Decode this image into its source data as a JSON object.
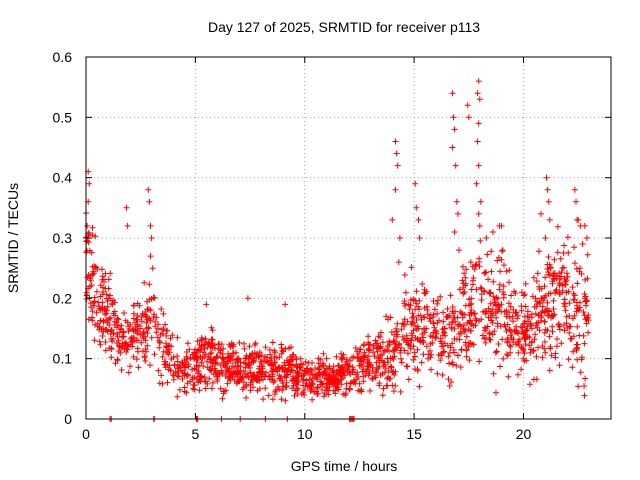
{
  "chart_data": {
    "type": "scatter",
    "title": "Day 127 of 2025, SRMTID for receiver p113",
    "xlabel": "GPS time / hours",
    "ylabel": "SRMTID / TECUs",
    "xlim": [
      0,
      24
    ],
    "ylim": [
      0,
      0.6
    ],
    "x_ticks": [
      0,
      5,
      10,
      15,
      20
    ],
    "x_tick_labels": [
      "0",
      "5",
      "10",
      "15",
      "20"
    ],
    "y_ticks": [
      0,
      0.1,
      0.2,
      0.3,
      0.4,
      0.5,
      0.6
    ],
    "y_tick_labels": [
      "0",
      "0.1",
      "0.2",
      "0.3",
      "0.4",
      "0.5",
      "0.6"
    ],
    "grid": true,
    "marker": "+",
    "colors": {
      "series": "#ff0000",
      "grid": "#a0a0a0",
      "axes": "#000000"
    },
    "trend_hours": [
      0,
      0.5,
      1,
      1.5,
      2,
      2.5,
      3,
      3.5,
      4,
      4.5,
      5,
      5.5,
      6,
      6.5,
      7,
      7.5,
      8,
      8.5,
      9,
      9.5,
      10,
      10.5,
      11,
      11.5,
      12,
      12.5,
      13,
      13.5,
      14,
      14.5,
      15,
      15.5,
      16,
      16.5,
      17,
      17.5,
      18,
      18.5,
      19,
      19.5,
      20,
      20.5,
      21,
      21.5,
      22,
      22.5,
      23
    ],
    "trend_values": [
      0.25,
      0.2,
      0.17,
      0.14,
      0.13,
      0.14,
      0.16,
      0.12,
      0.09,
      0.085,
      0.09,
      0.1,
      0.09,
      0.085,
      0.08,
      0.08,
      0.08,
      0.085,
      0.075,
      0.075,
      0.07,
      0.065,
      0.07,
      0.07,
      0.08,
      0.09,
      0.09,
      0.1,
      0.11,
      0.14,
      0.15,
      0.15,
      0.13,
      0.13,
      0.15,
      0.17,
      0.19,
      0.18,
      0.17,
      0.15,
      0.14,
      0.16,
      0.19,
      0.2,
      0.18,
      0.17,
      0.17
    ],
    "trend_spread": [
      0.06,
      0.05,
      0.04,
      0.035,
      0.03,
      0.035,
      0.05,
      0.035,
      0.025,
      0.025,
      0.03,
      0.035,
      0.03,
      0.025,
      0.025,
      0.025,
      0.025,
      0.03,
      0.025,
      0.025,
      0.02,
      0.02,
      0.02,
      0.02,
      0.025,
      0.025,
      0.025,
      0.03,
      0.04,
      0.05,
      0.05,
      0.05,
      0.04,
      0.04,
      0.06,
      0.06,
      0.07,
      0.06,
      0.06,
      0.05,
      0.05,
      0.05,
      0.06,
      0.06,
      0.06,
      0.06,
      0.06
    ],
    "highlight_points": [
      {
        "x": 0.1,
        "y": 0.41
      },
      {
        "x": 0.15,
        "y": 0.39
      },
      {
        "x": 0.1,
        "y": 0.36
      },
      {
        "x": 0.05,
        "y": 0.32
      },
      {
        "x": 0.0,
        "y": 0.3
      },
      {
        "x": 1.85,
        "y": 0.35
      },
      {
        "x": 1.9,
        "y": 0.32
      },
      {
        "x": 2.85,
        "y": 0.38
      },
      {
        "x": 2.9,
        "y": 0.36
      },
      {
        "x": 2.95,
        "y": 0.32
      },
      {
        "x": 3.0,
        "y": 0.3
      },
      {
        "x": 2.95,
        "y": 0.27
      },
      {
        "x": 3.05,
        "y": 0.25
      },
      {
        "x": 5.5,
        "y": 0.19
      },
      {
        "x": 7.4,
        "y": 0.2
      },
      {
        "x": 9.1,
        "y": 0.19
      },
      {
        "x": 14.15,
        "y": 0.46
      },
      {
        "x": 14.2,
        "y": 0.44
      },
      {
        "x": 14.25,
        "y": 0.42
      },
      {
        "x": 14.15,
        "y": 0.38
      },
      {
        "x": 14.0,
        "y": 0.33
      },
      {
        "x": 14.35,
        "y": 0.3
      },
      {
        "x": 14.3,
        "y": 0.26
      },
      {
        "x": 15.05,
        "y": 0.39
      },
      {
        "x": 15.1,
        "y": 0.35
      },
      {
        "x": 15.2,
        "y": 0.33
      },
      {
        "x": 15.25,
        "y": 0.3
      },
      {
        "x": 16.75,
        "y": 0.54
      },
      {
        "x": 16.8,
        "y": 0.5
      },
      {
        "x": 16.85,
        "y": 0.48
      },
      {
        "x": 16.75,
        "y": 0.45
      },
      {
        "x": 16.9,
        "y": 0.42
      },
      {
        "x": 16.95,
        "y": 0.36
      },
      {
        "x": 17.0,
        "y": 0.34
      },
      {
        "x": 16.85,
        "y": 0.31
      },
      {
        "x": 17.05,
        "y": 0.28
      },
      {
        "x": 17.45,
        "y": 0.52
      },
      {
        "x": 17.5,
        "y": 0.5
      },
      {
        "x": 17.95,
        "y": 0.56
      },
      {
        "x": 17.9,
        "y": 0.54
      },
      {
        "x": 18.0,
        "y": 0.53
      },
      {
        "x": 17.95,
        "y": 0.49
      },
      {
        "x": 17.9,
        "y": 0.46
      },
      {
        "x": 17.95,
        "y": 0.42
      },
      {
        "x": 17.85,
        "y": 0.39
      },
      {
        "x": 18.05,
        "y": 0.36
      },
      {
        "x": 17.95,
        "y": 0.34
      },
      {
        "x": 18.0,
        "y": 0.32
      },
      {
        "x": 18.3,
        "y": 0.3
      },
      {
        "x": 18.6,
        "y": 0.31
      },
      {
        "x": 18.9,
        "y": 0.32
      },
      {
        "x": 19.0,
        "y": 0.32
      },
      {
        "x": 19.05,
        "y": 0.28
      },
      {
        "x": 20.8,
        "y": 0.34
      },
      {
        "x": 21.05,
        "y": 0.4
      },
      {
        "x": 21.1,
        "y": 0.38
      },
      {
        "x": 21.15,
        "y": 0.36
      },
      {
        "x": 21.2,
        "y": 0.33
      },
      {
        "x": 21.0,
        "y": 0.3
      },
      {
        "x": 22.35,
        "y": 0.38
      },
      {
        "x": 22.4,
        "y": 0.36
      },
      {
        "x": 22.45,
        "y": 0.33
      },
      {
        "x": 22.5,
        "y": 0.33
      },
      {
        "x": 22.6,
        "y": 0.32
      },
      {
        "x": 22.8,
        "y": 0.32
      },
      {
        "x": 22.9,
        "y": 0.3
      },
      {
        "x": 22.7,
        "y": 0.29
      }
    ],
    "zero_points": [
      {
        "x": 1.1,
        "y": 0
      },
      {
        "x": 1.15,
        "y": 0
      },
      {
        "x": 3.1,
        "y": 0
      },
      {
        "x": 3.12,
        "y": 0
      },
      {
        "x": 5.05,
        "y": 0
      },
      {
        "x": 5.1,
        "y": 0
      },
      {
        "x": 6.2,
        "y": 0
      },
      {
        "x": 7.05,
        "y": 0
      },
      {
        "x": 8.2,
        "y": 0
      },
      {
        "x": 9.2,
        "y": 0
      },
      {
        "x": 12.05,
        "y": 0
      },
      {
        "x": 12.1,
        "y": 0
      },
      {
        "x": 12.15,
        "y": 0
      },
      {
        "x": 12.2,
        "y": 0
      },
      {
        "x": 12.25,
        "y": 0
      }
    ],
    "random_point_count": 1900,
    "random_seed": 127
  }
}
